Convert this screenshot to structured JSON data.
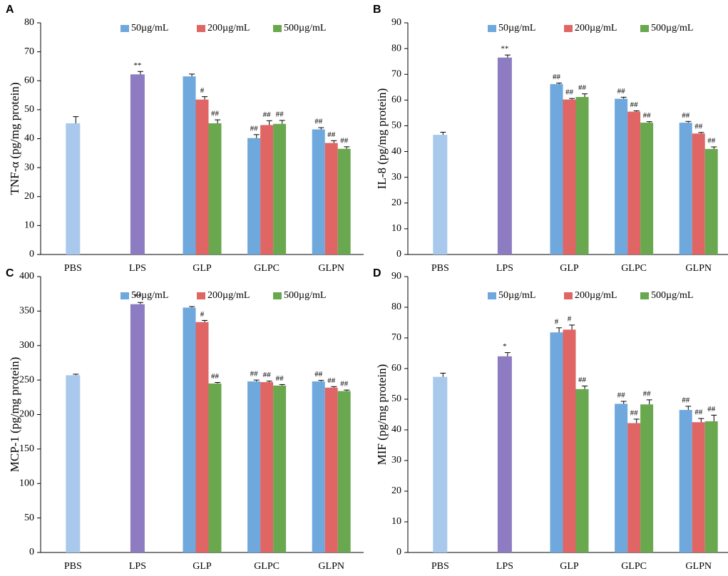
{
  "chart_data": [
    {
      "type": "bar",
      "panel": "A",
      "ylabel": "TNF-α (pg/mg protein)",
      "categories": [
        "PBS",
        "LPS",
        "GLP",
        "GLPC",
        "GLPN"
      ],
      "ylim": [
        0,
        80
      ],
      "yticks": [
        0,
        10,
        20,
        30,
        40,
        50,
        60,
        70,
        80
      ],
      "control": {
        "colors": [
          "#a9c9ec",
          "#8e7cc3",
          null,
          null,
          null
        ],
        "values": [
          45.3,
          62.2,
          null,
          null,
          null
        ],
        "errors": [
          2.3,
          1,
          null,
          null,
          null
        ],
        "annotations": [
          null,
          "**",
          null,
          null,
          null
        ]
      },
      "series": [
        {
          "name": "50µg/mL",
          "color": "#6fa8dc",
          "values": [
            null,
            null,
            61.5,
            40.2,
            43.2
          ],
          "errors": [
            null,
            null,
            0.8,
            1.2,
            0.6
          ],
          "annotations": [
            null,
            null,
            null,
            "##",
            "##"
          ]
        },
        {
          "name": "200µg/mL",
          "color": "#e06666",
          "values": [
            null,
            null,
            53.5,
            44.7,
            38.5
          ],
          "errors": [
            null,
            null,
            1,
            1.5,
            0.8
          ],
          "annotations": [
            null,
            null,
            "#",
            "##",
            "##"
          ]
        },
        {
          "name": "500µg/mL",
          "color": "#6aa84f",
          "values": [
            null,
            null,
            45.3,
            45.1,
            36.5
          ],
          "errors": [
            null,
            null,
            1.2,
            1.2,
            0.7
          ],
          "annotations": [
            null,
            null,
            "##",
            "##",
            "##"
          ]
        }
      ]
    },
    {
      "type": "bar",
      "panel": "B",
      "ylabel": "IL-8 (pg/mg protein)",
      "categories": [
        "PBS",
        "LPS",
        "GLP",
        "GLPC",
        "GLPN"
      ],
      "ylim": [
        0,
        90
      ],
      "yticks": [
        0,
        10,
        20,
        30,
        40,
        50,
        60,
        70,
        80,
        90
      ],
      "control": {
        "colors": [
          "#a9c9ec",
          "#8e7cc3",
          null,
          null,
          null
        ],
        "values": [
          46.5,
          76.5,
          null,
          null,
          null
        ],
        "errors": [
          1,
          1,
          null,
          null,
          null
        ],
        "annotations": [
          null,
          "**",
          null,
          null,
          null
        ]
      },
      "series": [
        {
          "name": "50µg/mL",
          "color": "#6fa8dc",
          "values": [
            null,
            null,
            66.2,
            60.5,
            51.2
          ],
          "errors": [
            null,
            null,
            0.4,
            0.6,
            0.5
          ],
          "annotations": [
            null,
            null,
            "##",
            "##",
            "##"
          ]
        },
        {
          "name": "200µg/mL",
          "color": "#e06666",
          "values": [
            null,
            null,
            60.2,
            55.5,
            47
          ],
          "errors": [
            null,
            null,
            0.4,
            0.3,
            0.4
          ],
          "annotations": [
            null,
            null,
            "##",
            "##",
            "##"
          ]
        },
        {
          "name": "500µg/mL",
          "color": "#6aa84f",
          "values": [
            null,
            null,
            61.2,
            51.2,
            41
          ],
          "errors": [
            null,
            null,
            1.2,
            0.4,
            0.8
          ],
          "annotations": [
            null,
            null,
            "##",
            "##",
            "##"
          ]
        }
      ]
    },
    {
      "type": "bar",
      "panel": "C",
      "ylabel": "MCP-1 (pg/mg protein)",
      "categories": [
        "PBS",
        "LPS",
        "GLP",
        "GLPC",
        "GLPN"
      ],
      "ylim": [
        0,
        400
      ],
      "yticks": [
        0,
        50,
        100,
        150,
        200,
        250,
        300,
        350,
        400
      ],
      "control": {
        "colors": [
          "#a9c9ec",
          "#8e7cc3",
          null,
          null,
          null
        ],
        "values": [
          257,
          360,
          null,
          null,
          null
        ],
        "errors": [
          1.5,
          2.5,
          null,
          null,
          null
        ],
        "annotations": [
          null,
          "**",
          null,
          null,
          null
        ]
      },
      "series": [
        {
          "name": "50µg/mL",
          "color": "#6fa8dc",
          "values": [
            null,
            null,
            355,
            248,
            248
          ],
          "errors": [
            null,
            null,
            1.5,
            2,
            1.5
          ],
          "annotations": [
            null,
            null,
            null,
            "##",
            "##"
          ]
        },
        {
          "name": "200µg/mL",
          "color": "#e06666",
          "values": [
            null,
            null,
            334,
            247,
            239
          ],
          "errors": [
            null,
            null,
            2.5,
            1.5,
            1.5
          ],
          "annotations": [
            null,
            null,
            "#",
            "##",
            "##"
          ]
        },
        {
          "name": "500µg/mL",
          "color": "#6aa84f",
          "values": [
            null,
            null,
            245,
            242,
            234
          ],
          "errors": [
            null,
            null,
            1.5,
            1.5,
            1.5
          ],
          "annotations": [
            null,
            null,
            "##",
            "##",
            "##"
          ]
        }
      ]
    },
    {
      "type": "bar",
      "panel": "D",
      "ylabel": "MIF (pg/mg protein)",
      "categories": [
        "PBS",
        "LPS",
        "GLP",
        "GLPC",
        "GLPN"
      ],
      "ylim": [
        0,
        90
      ],
      "yticks": [
        0,
        10,
        20,
        30,
        40,
        50,
        60,
        70,
        80,
        90
      ],
      "control": {
        "colors": [
          "#a9c9ec",
          "#8e7cc3",
          null,
          null,
          null
        ],
        "values": [
          57.3,
          64,
          null,
          null,
          null
        ],
        "errors": [
          1.2,
          1.2,
          null,
          null,
          null
        ],
        "annotations": [
          null,
          "*",
          null,
          null,
          null
        ]
      },
      "series": [
        {
          "name": "50µg/mL",
          "color": "#6fa8dc",
          "values": [
            null,
            null,
            71.8,
            48.5,
            46.5
          ],
          "errors": [
            null,
            null,
            1.5,
            0.8,
            1.2
          ],
          "annotations": [
            null,
            null,
            "#",
            "##",
            "##"
          ]
        },
        {
          "name": "200µg/mL",
          "color": "#e06666",
          "values": [
            null,
            null,
            72.7,
            42.2,
            42.5
          ],
          "errors": [
            null,
            null,
            1.5,
            1.3,
            1.2
          ],
          "annotations": [
            null,
            null,
            "#",
            "##",
            "##"
          ]
        },
        {
          "name": "500µg/mL",
          "color": "#6aa84f",
          "values": [
            null,
            null,
            53.3,
            48.3,
            42.8
          ],
          "errors": [
            null,
            null,
            1,
            1.5,
            2
          ],
          "annotations": [
            null,
            null,
            "##",
            "##",
            "##"
          ]
        }
      ]
    }
  ]
}
